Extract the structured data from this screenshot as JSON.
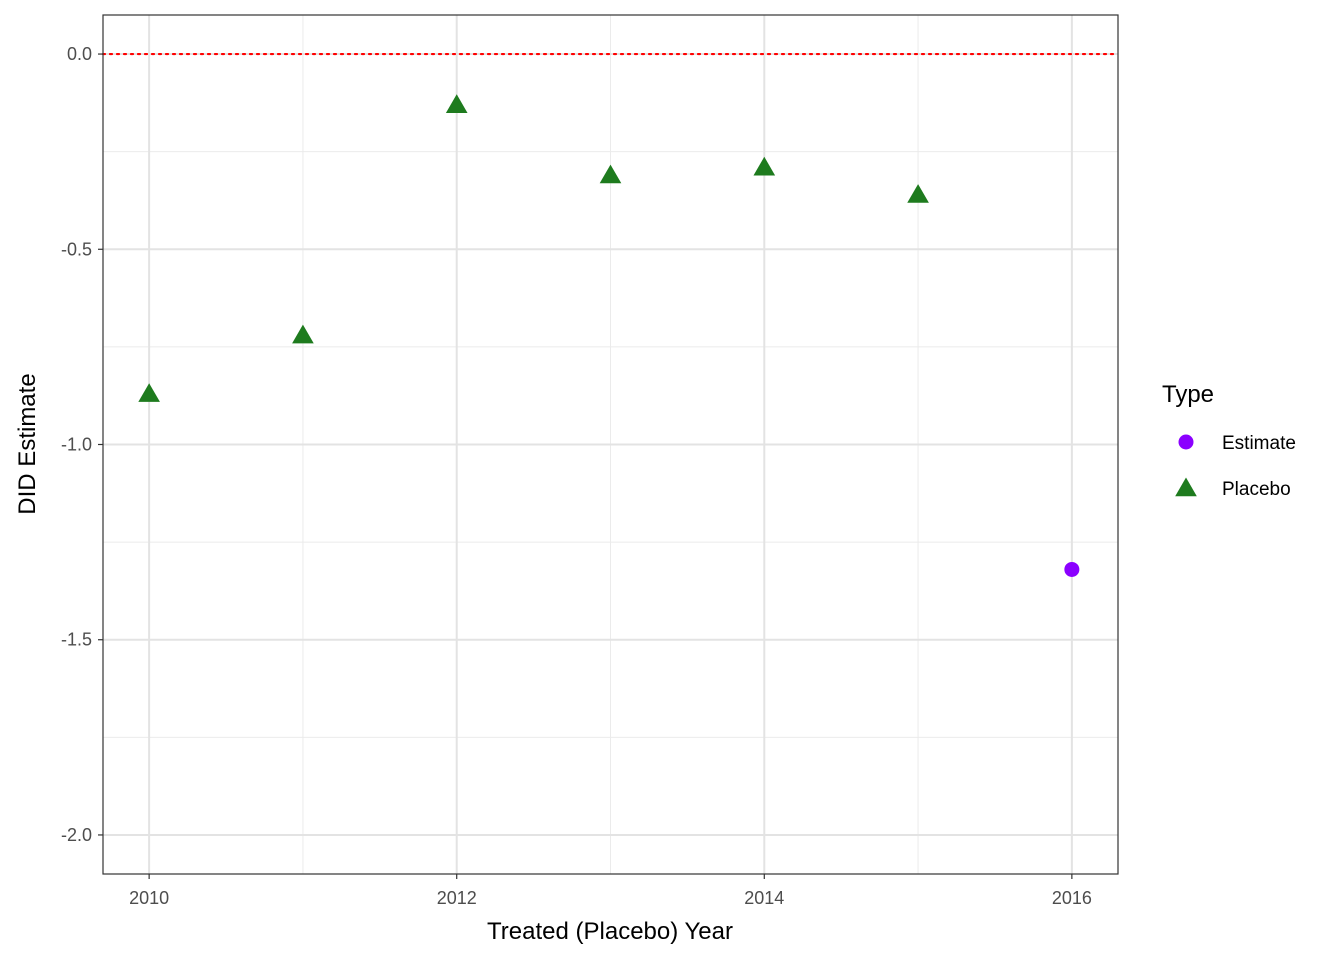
{
  "chart_data": {
    "type": "scatter",
    "title": "",
    "xlabel": "Treated (Placebo) Year",
    "ylabel": "DID Estimate",
    "xlim": [
      2009.7,
      2016.3
    ],
    "ylim": [
      -2.1,
      0.1
    ],
    "x_ticks": [
      2010,
      2012,
      2014,
      2016
    ],
    "x_tick_labels": [
      "2010",
      "2012",
      "2014",
      "2016"
    ],
    "x_minor_ticks": [
      2011,
      2013,
      2015
    ],
    "y_ticks": [
      0.0,
      -0.5,
      -1.0,
      -1.5,
      -2.0
    ],
    "y_tick_labels": [
      "0.0",
      "-0.5",
      "-1.0",
      "-1.5",
      "-2.0"
    ],
    "y_minor_ticks": [
      -0.25,
      -0.75,
      -1.25,
      -1.75
    ],
    "grid": true,
    "reference_line": {
      "y": 0.0,
      "style": "dotted",
      "color": "#ff0000"
    },
    "legend": {
      "title": "Type",
      "placement": "right"
    },
    "series": [
      {
        "name": "Estimate",
        "marker": "circle",
        "color": "#8b00ff",
        "x": [
          2016
        ],
        "y": [
          -1.32
        ]
      },
      {
        "name": "Placebo",
        "marker": "triangle",
        "color": "#1e7b1e",
        "x": [
          2010,
          2011,
          2012,
          2013,
          2014,
          2015
        ],
        "y": [
          -0.87,
          -0.72,
          -0.13,
          -0.31,
          -0.29,
          -0.36
        ]
      }
    ]
  }
}
